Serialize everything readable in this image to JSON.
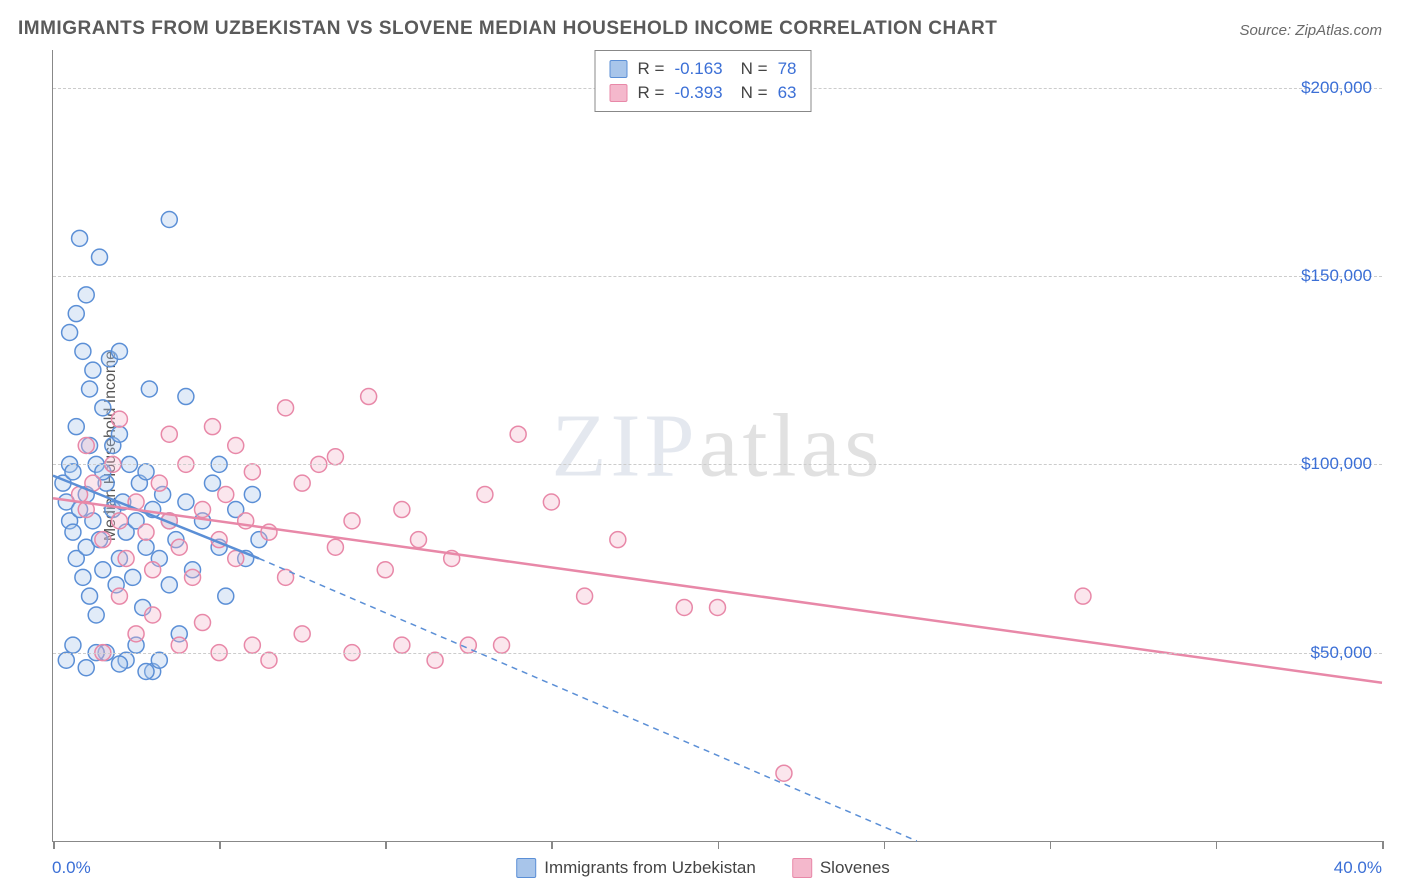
{
  "title": "IMMIGRANTS FROM UZBEKISTAN VS SLOVENE MEDIAN HOUSEHOLD INCOME CORRELATION CHART",
  "source": "Source: ZipAtlas.com",
  "watermark": {
    "bold": "ZIP",
    "thin": "atlas"
  },
  "chart": {
    "type": "scatter",
    "ylabel": "Median Household Income",
    "xlim": [
      0,
      40
    ],
    "ylim": [
      0,
      210000
    ],
    "xtick_positions": [
      0,
      5,
      10,
      15,
      20,
      25,
      30,
      35,
      40
    ],
    "x_axis_labels": {
      "left": "0.0%",
      "right": "40.0%"
    },
    "ytick_positions": [
      50000,
      100000,
      150000,
      200000
    ],
    "ytick_labels": [
      "$50,000",
      "$100,000",
      "$150,000",
      "$200,000"
    ],
    "grid_color": "#cccccc",
    "axis_color": "#888888",
    "background_color": "#ffffff",
    "marker_radius": 8,
    "marker_fill_opacity": 0.35,
    "marker_stroke_width": 1.5,
    "line_width": 2.5,
    "series": [
      {
        "name": "Immigrants from Uzbekistan",
        "color": "#5b8fd6",
        "fill": "#a8c5ea",
        "R": "-0.163",
        "N": "78",
        "trend": {
          "x1": 0,
          "y1": 97000,
          "x2": 6.2,
          "y2": 75000,
          "dash_to_x": 26,
          "dash_to_y": 0
        },
        "points": [
          [
            0.3,
            95000
          ],
          [
            0.4,
            90000
          ],
          [
            0.5,
            85000
          ],
          [
            0.5,
            100000
          ],
          [
            0.6,
            98000
          ],
          [
            0.6,
            82000
          ],
          [
            0.7,
            110000
          ],
          [
            0.7,
            75000
          ],
          [
            0.8,
            160000
          ],
          [
            0.8,
            88000
          ],
          [
            0.9,
            130000
          ],
          [
            0.9,
            70000
          ],
          [
            1.0,
            145000
          ],
          [
            1.0,
            92000
          ],
          [
            1.0,
            78000
          ],
          [
            1.1,
            120000
          ],
          [
            1.1,
            65000
          ],
          [
            1.2,
            125000
          ],
          [
            1.2,
            85000
          ],
          [
            1.3,
            100000
          ],
          [
            1.3,
            60000
          ],
          [
            1.4,
            155000
          ],
          [
            1.4,
            80000
          ],
          [
            1.5,
            115000
          ],
          [
            1.5,
            72000
          ],
          [
            1.6,
            95000
          ],
          [
            1.6,
            50000
          ],
          [
            1.7,
            128000
          ],
          [
            1.8,
            88000
          ],
          [
            1.8,
            105000
          ],
          [
            1.9,
            68000
          ],
          [
            2.0,
            130000
          ],
          [
            2.0,
            75000
          ],
          [
            2.1,
            90000
          ],
          [
            2.2,
            48000
          ],
          [
            2.2,
            82000
          ],
          [
            2.3,
            100000
          ],
          [
            2.4,
            70000
          ],
          [
            2.5,
            85000
          ],
          [
            2.6,
            95000
          ],
          [
            2.7,
            62000
          ],
          [
            2.8,
            78000
          ],
          [
            2.9,
            120000
          ],
          [
            3.0,
            45000
          ],
          [
            3.0,
            88000
          ],
          [
            3.2,
            75000
          ],
          [
            3.3,
            92000
          ],
          [
            3.5,
            68000
          ],
          [
            3.5,
            165000
          ],
          [
            3.7,
            80000
          ],
          [
            3.8,
            55000
          ],
          [
            4.0,
            90000
          ],
          [
            4.0,
            118000
          ],
          [
            4.2,
            72000
          ],
          [
            4.5,
            85000
          ],
          [
            4.8,
            95000
          ],
          [
            5.0,
            78000
          ],
          [
            5.0,
            100000
          ],
          [
            5.2,
            65000
          ],
          [
            5.5,
            88000
          ],
          [
            5.8,
            75000
          ],
          [
            6.0,
            92000
          ],
          [
            6.2,
            80000
          ],
          [
            0.4,
            48000
          ],
          [
            0.6,
            52000
          ],
          [
            1.0,
            46000
          ],
          [
            1.3,
            50000
          ],
          [
            2.0,
            47000
          ],
          [
            2.5,
            52000
          ],
          [
            2.8,
            45000
          ],
          [
            3.2,
            48000
          ],
          [
            0.5,
            135000
          ],
          [
            0.7,
            140000
          ],
          [
            1.1,
            105000
          ],
          [
            1.5,
            98000
          ],
          [
            2.0,
            108000
          ],
          [
            2.8,
            98000
          ],
          [
            3.5,
            85000
          ]
        ]
      },
      {
        "name": "Slovenes",
        "color": "#e888a8",
        "fill": "#f4b8cc",
        "R": "-0.393",
        "N": "63",
        "trend": {
          "x1": 0,
          "y1": 91000,
          "x2": 40,
          "y2": 42000
        },
        "points": [
          [
            0.8,
            92000
          ],
          [
            1.0,
            88000
          ],
          [
            1.2,
            95000
          ],
          [
            1.5,
            80000
          ],
          [
            1.8,
            100000
          ],
          [
            2.0,
            85000
          ],
          [
            2.2,
            75000
          ],
          [
            2.5,
            90000
          ],
          [
            2.8,
            82000
          ],
          [
            3.0,
            72000
          ],
          [
            3.2,
            95000
          ],
          [
            3.5,
            85000
          ],
          [
            3.8,
            78000
          ],
          [
            4.0,
            100000
          ],
          [
            4.2,
            70000
          ],
          [
            4.5,
            88000
          ],
          [
            4.8,
            110000
          ],
          [
            5.0,
            80000
          ],
          [
            5.2,
            92000
          ],
          [
            5.5,
            75000
          ],
          [
            5.8,
            85000
          ],
          [
            6.0,
            98000
          ],
          [
            6.5,
            82000
          ],
          [
            7.0,
            70000
          ],
          [
            7.5,
            95000
          ],
          [
            8.0,
            100000
          ],
          [
            8.5,
            78000
          ],
          [
            9.0,
            85000
          ],
          [
            9.5,
            118000
          ],
          [
            10.0,
            72000
          ],
          [
            10.5,
            88000
          ],
          [
            11.0,
            80000
          ],
          [
            12.0,
            75000
          ],
          [
            13.0,
            92000
          ],
          [
            14.0,
            108000
          ],
          [
            15.0,
            90000
          ],
          [
            16.0,
            65000
          ],
          [
            17.0,
            80000
          ],
          [
            19.0,
            62000
          ],
          [
            20.0,
            62000
          ],
          [
            22.0,
            18000
          ],
          [
            31.0,
            65000
          ],
          [
            1.5,
            50000
          ],
          [
            2.0,
            65000
          ],
          [
            2.5,
            55000
          ],
          [
            3.0,
            60000
          ],
          [
            3.8,
            52000
          ],
          [
            4.5,
            58000
          ],
          [
            5.0,
            50000
          ],
          [
            6.0,
            52000
          ],
          [
            6.5,
            48000
          ],
          [
            7.5,
            55000
          ],
          [
            9.0,
            50000
          ],
          [
            10.5,
            52000
          ],
          [
            11.5,
            48000
          ],
          [
            12.5,
            52000
          ],
          [
            1.0,
            105000
          ],
          [
            2.0,
            112000
          ],
          [
            3.5,
            108000
          ],
          [
            5.5,
            105000
          ],
          [
            7.0,
            115000
          ],
          [
            8.5,
            102000
          ],
          [
            13.5,
            52000
          ]
        ]
      }
    ],
    "legend": [
      {
        "label": "Immigrants from Uzbekistan",
        "fill": "#a8c5ea",
        "stroke": "#5b8fd6"
      },
      {
        "label": "Slovenes",
        "fill": "#f4b8cc",
        "stroke": "#e888a8"
      }
    ]
  }
}
